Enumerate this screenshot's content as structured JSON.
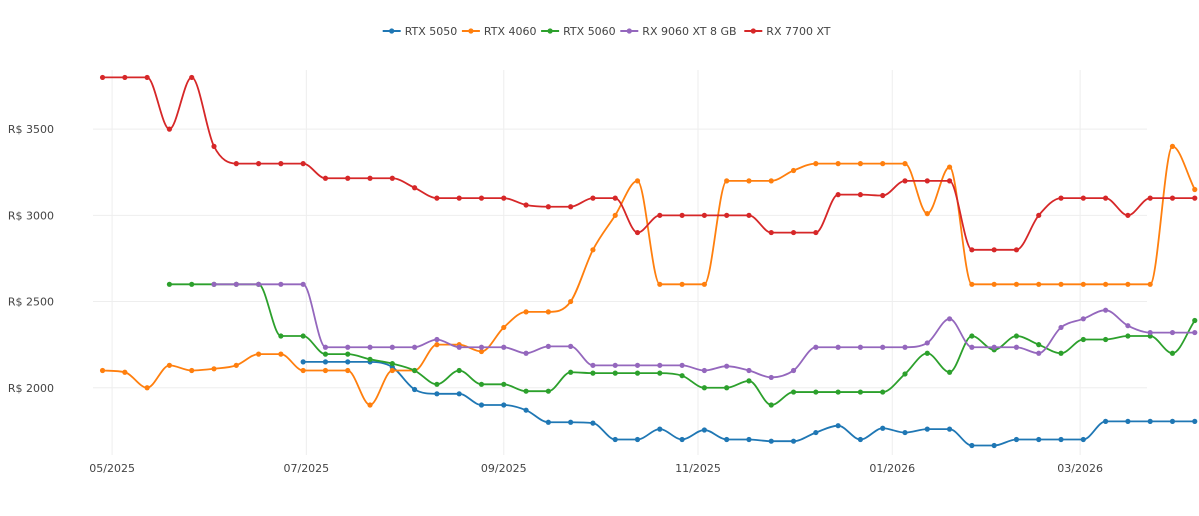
{
  "chart_data": {
    "type": "line",
    "title": "",
    "xlabel": "",
    "ylabel": "",
    "ylim": [
      1610,
      3930
    ],
    "yticks": [
      {
        "value": 2000,
        "label": "R$ 2000"
      },
      {
        "value": 2500,
        "label": "R$ 2500"
      },
      {
        "value": 3000,
        "label": "R$ 3000"
      },
      {
        "value": 3500,
        "label": "R$ 3500"
      }
    ],
    "xlim": [
      -6,
      325
    ],
    "xticks": [
      {
        "value": 0,
        "label": "05/2025"
      },
      {
        "value": 61,
        "label": "07/2025"
      },
      {
        "value": 123,
        "label": "09/2025"
      },
      {
        "value": 184,
        "label": "11/2025"
      },
      {
        "value": 245,
        "label": "01/2026"
      },
      {
        "value": 304,
        "label": "03/2026"
      }
    ],
    "grid": true,
    "legend_position": "top-center",
    "series": [
      {
        "name": "RTX 5050",
        "color": "#1f77b4",
        "points": [
          [
            60,
            2150
          ],
          [
            67,
            2150
          ],
          [
            74,
            2150
          ],
          [
            81,
            2150
          ],
          [
            88,
            2120
          ],
          [
            95,
            1990
          ],
          [
            102,
            1965
          ],
          [
            109,
            1965
          ],
          [
            116,
            1900
          ],
          [
            123,
            1900
          ],
          [
            130,
            1870
          ],
          [
            137,
            1800
          ],
          [
            144,
            1800
          ],
          [
            151,
            1795
          ],
          [
            158,
            1700
          ],
          [
            165,
            1700
          ],
          [
            172,
            1760
          ],
          [
            179,
            1700
          ],
          [
            186,
            1755
          ],
          [
            193,
            1700
          ],
          [
            200,
            1700
          ],
          [
            207,
            1690
          ],
          [
            214,
            1690
          ],
          [
            221,
            1740
          ],
          [
            228,
            1780
          ],
          [
            235,
            1700
          ],
          [
            242,
            1765
          ],
          [
            249,
            1740
          ],
          [
            256,
            1760
          ],
          [
            263,
            1760
          ],
          [
            270,
            1665
          ],
          [
            277,
            1665
          ],
          [
            284,
            1700
          ],
          [
            291,
            1700
          ],
          [
            298,
            1700
          ],
          [
            305,
            1700
          ],
          [
            312,
            1805
          ],
          [
            319,
            1805
          ],
          [
            326,
            1805
          ],
          [
            333,
            1805
          ],
          [
            340,
            1805
          ]
        ]
      },
      {
        "name": "RTX 4060",
        "color": "#ff7f0e",
        "points": [
          [
            -3,
            2100
          ],
          [
            4,
            2090
          ],
          [
            11,
            2000
          ],
          [
            18,
            2130
          ],
          [
            25,
            2100
          ],
          [
            32,
            2110
          ],
          [
            39,
            2130
          ],
          [
            46,
            2195
          ],
          [
            53,
            2195
          ],
          [
            60,
            2100
          ],
          [
            67,
            2100
          ],
          [
            74,
            2100
          ],
          [
            81,
            1900
          ],
          [
            88,
            2100
          ],
          [
            95,
            2100
          ],
          [
            102,
            2250
          ],
          [
            109,
            2250
          ],
          [
            116,
            2210
          ],
          [
            123,
            2350
          ],
          [
            130,
            2440
          ],
          [
            137,
            2440
          ],
          [
            144,
            2500
          ],
          [
            151,
            2800
          ],
          [
            158,
            3000
          ],
          [
            165,
            3200
          ],
          [
            172,
            2600
          ],
          [
            179,
            2600
          ],
          [
            186,
            2600
          ],
          [
            193,
            3200
          ],
          [
            200,
            3200
          ],
          [
            207,
            3200
          ],
          [
            214,
            3260
          ],
          [
            221,
            3300
          ],
          [
            228,
            3300
          ],
          [
            235,
            3300
          ],
          [
            242,
            3300
          ],
          [
            249,
            3300
          ],
          [
            256,
            3010
          ],
          [
            263,
            3280
          ],
          [
            270,
            2600
          ],
          [
            277,
            2600
          ],
          [
            284,
            2600
          ],
          [
            291,
            2600
          ],
          [
            298,
            2600
          ],
          [
            305,
            2600
          ],
          [
            312,
            2600
          ],
          [
            319,
            2600
          ],
          [
            326,
            2600
          ],
          [
            333,
            3400
          ],
          [
            340,
            3150
          ]
        ]
      },
      {
        "name": "RTX 5060",
        "color": "#2ca02c",
        "points": [
          [
            18,
            2600
          ],
          [
            25,
            2600
          ],
          [
            32,
            2600
          ],
          [
            39,
            2600
          ],
          [
            46,
            2600
          ],
          [
            53,
            2300
          ],
          [
            60,
            2300
          ],
          [
            67,
            2195
          ],
          [
            74,
            2195
          ],
          [
            81,
            2165
          ],
          [
            88,
            2140
          ],
          [
            95,
            2100
          ],
          [
            102,
            2020
          ],
          [
            109,
            2100
          ],
          [
            116,
            2020
          ],
          [
            123,
            2020
          ],
          [
            130,
            1980
          ],
          [
            137,
            1980
          ],
          [
            144,
            2090
          ],
          [
            151,
            2085
          ],
          [
            158,
            2085
          ],
          [
            165,
            2085
          ],
          [
            172,
            2085
          ],
          [
            179,
            2070
          ],
          [
            186,
            2000
          ],
          [
            193,
            2000
          ],
          [
            200,
            2040
          ],
          [
            207,
            1900
          ],
          [
            214,
            1975
          ],
          [
            221,
            1975
          ],
          [
            228,
            1975
          ],
          [
            235,
            1975
          ],
          [
            242,
            1975
          ],
          [
            249,
            2080
          ],
          [
            256,
            2200
          ],
          [
            263,
            2090
          ],
          [
            270,
            2300
          ],
          [
            277,
            2220
          ],
          [
            284,
            2300
          ],
          [
            291,
            2250
          ],
          [
            298,
            2200
          ],
          [
            305,
            2280
          ],
          [
            312,
            2280
          ],
          [
            319,
            2300
          ],
          [
            326,
            2300
          ],
          [
            333,
            2200
          ],
          [
            340,
            2390
          ]
        ]
      },
      {
        "name": "RX 9060 XT 8 GB",
        "color": "#9467bd",
        "points": [
          [
            32,
            2600
          ],
          [
            39,
            2600
          ],
          [
            46,
            2600
          ],
          [
            53,
            2600
          ],
          [
            60,
            2600
          ],
          [
            67,
            2235
          ],
          [
            74,
            2235
          ],
          [
            81,
            2235
          ],
          [
            88,
            2235
          ],
          [
            95,
            2235
          ],
          [
            102,
            2280
          ],
          [
            109,
            2235
          ],
          [
            116,
            2235
          ],
          [
            123,
            2235
          ],
          [
            130,
            2200
          ],
          [
            137,
            2240
          ],
          [
            144,
            2240
          ],
          [
            151,
            2130
          ],
          [
            158,
            2130
          ],
          [
            165,
            2130
          ],
          [
            172,
            2130
          ],
          [
            179,
            2130
          ],
          [
            186,
            2100
          ],
          [
            193,
            2125
          ],
          [
            200,
            2100
          ],
          [
            207,
            2060
          ],
          [
            214,
            2100
          ],
          [
            221,
            2235
          ],
          [
            228,
            2235
          ],
          [
            235,
            2235
          ],
          [
            242,
            2235
          ],
          [
            249,
            2235
          ],
          [
            256,
            2260
          ],
          [
            263,
            2400
          ],
          [
            270,
            2235
          ],
          [
            277,
            2235
          ],
          [
            284,
            2235
          ],
          [
            291,
            2200
          ],
          [
            298,
            2350
          ],
          [
            305,
            2400
          ],
          [
            312,
            2450
          ],
          [
            319,
            2360
          ],
          [
            326,
            2320
          ],
          [
            333,
            2320
          ],
          [
            340,
            2320
          ]
        ]
      },
      {
        "name": "RX 7700 XT",
        "color": "#d62728",
        "points": [
          [
            -3,
            3800
          ],
          [
            4,
            3800
          ],
          [
            11,
            3800
          ],
          [
            18,
            3500
          ],
          [
            25,
            3800
          ],
          [
            32,
            3400
          ],
          [
            39,
            3300
          ],
          [
            46,
            3300
          ],
          [
            53,
            3300
          ],
          [
            60,
            3300
          ],
          [
            67,
            3215
          ],
          [
            74,
            3215
          ],
          [
            81,
            3215
          ],
          [
            88,
            3215
          ],
          [
            95,
            3160
          ],
          [
            102,
            3100
          ],
          [
            109,
            3100
          ],
          [
            116,
            3100
          ],
          [
            123,
            3100
          ],
          [
            130,
            3060
          ],
          [
            137,
            3050
          ],
          [
            144,
            3050
          ],
          [
            151,
            3100
          ],
          [
            158,
            3100
          ],
          [
            165,
            2900
          ],
          [
            172,
            3000
          ],
          [
            179,
            3000
          ],
          [
            186,
            3000
          ],
          [
            193,
            3000
          ],
          [
            200,
            3000
          ],
          [
            207,
            2900
          ],
          [
            214,
            2900
          ],
          [
            221,
            2900
          ],
          [
            228,
            3120
          ],
          [
            235,
            3120
          ],
          [
            242,
            3115
          ],
          [
            249,
            3200
          ],
          [
            256,
            3200
          ],
          [
            263,
            3200
          ],
          [
            270,
            2800
          ],
          [
            277,
            2800
          ],
          [
            284,
            2800
          ],
          [
            291,
            3000
          ],
          [
            298,
            3100
          ],
          [
            305,
            3100
          ],
          [
            312,
            3100
          ],
          [
            319,
            3000
          ],
          [
            326,
            3100
          ],
          [
            333,
            3100
          ],
          [
            340,
            3100
          ]
        ]
      }
    ]
  }
}
